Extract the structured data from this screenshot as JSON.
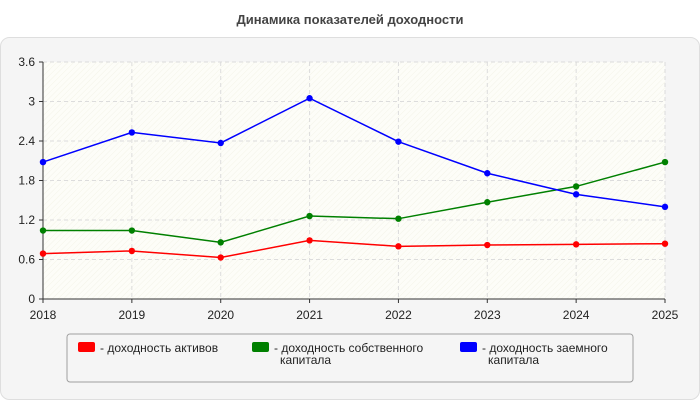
{
  "chart_data": {
    "type": "line",
    "title": "Динамика показателей доходности",
    "x": [
      "2018",
      "2019",
      "2020",
      "2021",
      "2022",
      "2023",
      "2024",
      "2025"
    ],
    "y_ticks": [
      "0",
      "0.6",
      "1.2",
      "1.8",
      "2.4",
      "3",
      "3.6"
    ],
    "ylim": [
      0,
      3.6
    ],
    "grid": true,
    "legend_position": "bottom",
    "series": [
      {
        "name": "- доходность активов",
        "legend_lines": [
          "- доходность активов"
        ],
        "color": "#ff0000",
        "values": [
          0.69,
          0.73,
          0.63,
          0.89,
          0.8,
          0.82,
          0.83,
          0.84
        ]
      },
      {
        "name": "- доходность собственного капитала",
        "legend_lines": [
          "- доходность собственного",
          "капитала"
        ],
        "color": "#008000",
        "values": [
          1.04,
          1.04,
          0.86,
          1.26,
          1.22,
          1.47,
          1.71,
          2.08
        ]
      },
      {
        "name": "- доходность заемного капитала",
        "legend_lines": [
          "- доходность заемного",
          "капитала"
        ],
        "color": "#0000ff",
        "values": [
          2.08,
          2.53,
          2.37,
          3.05,
          2.39,
          1.91,
          1.59,
          1.4
        ]
      }
    ]
  }
}
